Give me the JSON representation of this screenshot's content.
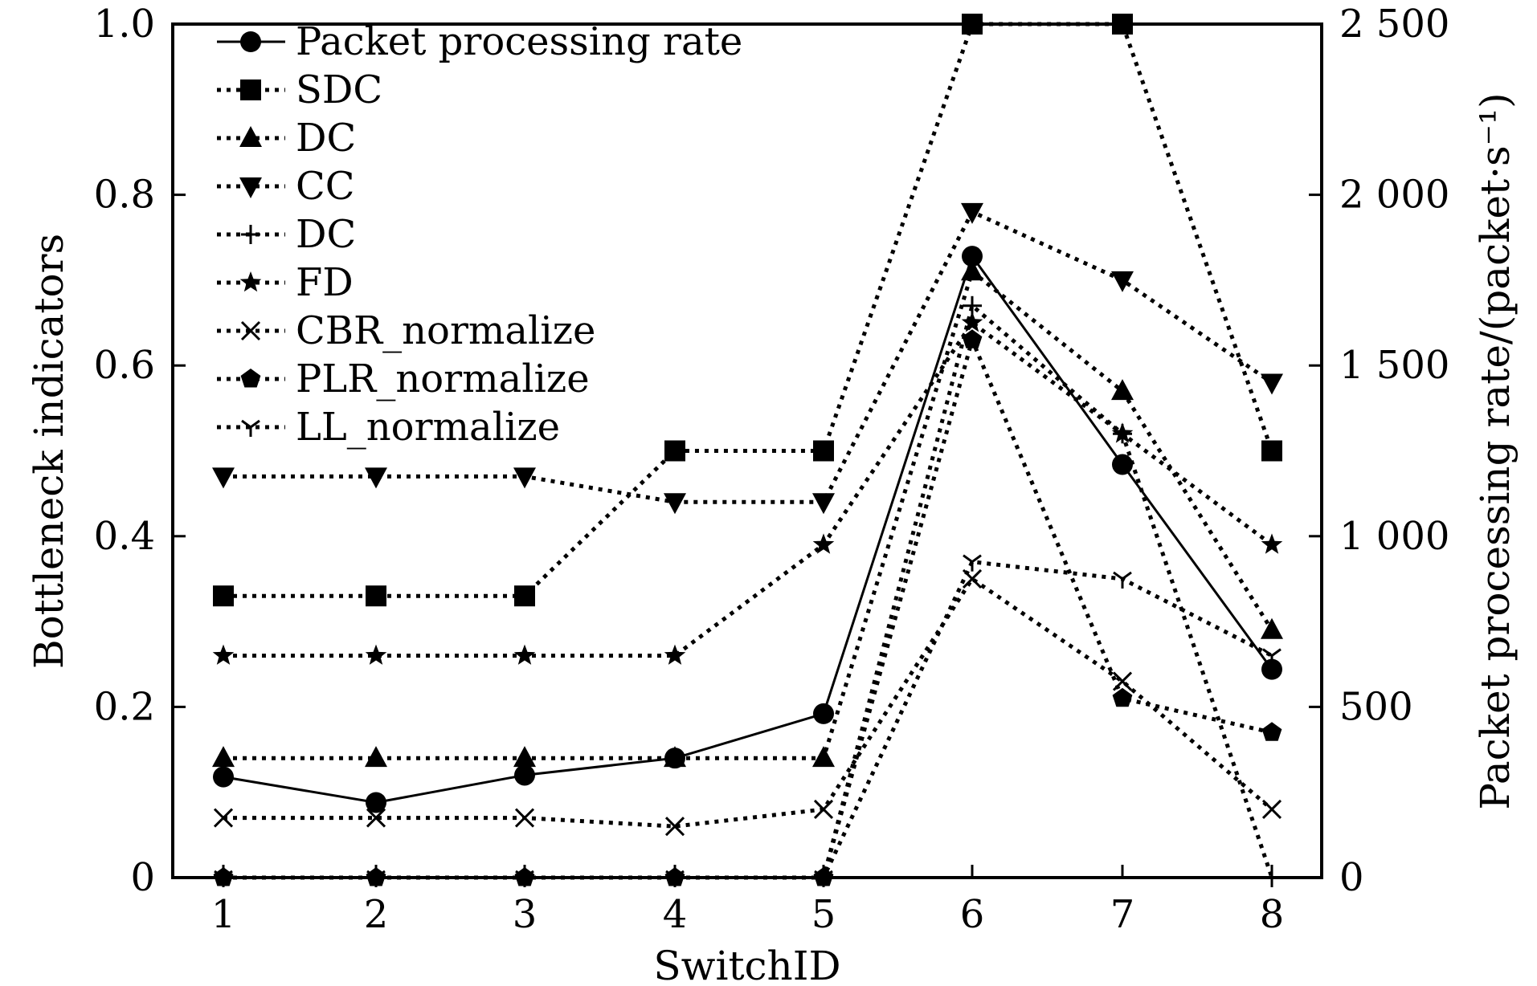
{
  "chart_data": {
    "type": "line",
    "xlabel": "SwitchID",
    "ylabel": "Bottleneck indicators",
    "ylabel_right": "Packet processing rate/(packet·s⁻¹)",
    "categories": [
      "1",
      "2",
      "3",
      "4",
      "5",
      "6",
      "7",
      "8"
    ],
    "ylim": [
      0,
      1.0
    ],
    "ylim_right": [
      0,
      2500
    ],
    "yticks": [
      "0",
      "0.2",
      "0.4",
      "0.6",
      "0.8",
      "1.0"
    ],
    "yticks_right": [
      "0",
      "500",
      "1 000",
      "1 500",
      "2 000",
      "2 500"
    ],
    "grid": false,
    "legend_position": "top-left",
    "series": [
      {
        "name": "Packet processing rate",
        "axis": "right",
        "style": "solid",
        "marker": "circle",
        "values": [
          295,
          220,
          300,
          350,
          480,
          1820,
          1210,
          610
        ]
      },
      {
        "name": "SDC",
        "axis": "left",
        "style": "dotted",
        "marker": "square",
        "values": [
          0.33,
          0.33,
          0.33,
          0.5,
          0.5,
          1.0,
          1.0,
          0.5
        ]
      },
      {
        "name": "DC",
        "axis": "left",
        "style": "dotted",
        "marker": "triangle-up",
        "values": [
          0.14,
          0.14,
          0.14,
          0.14,
          0.14,
          0.71,
          0.57,
          0.29
        ]
      },
      {
        "name": "CC",
        "axis": "left",
        "style": "dotted",
        "marker": "triangle-down",
        "values": [
          0.47,
          0.47,
          0.47,
          0.44,
          0.44,
          0.78,
          0.7,
          0.58
        ]
      },
      {
        "name": "DC",
        "axis": "left",
        "style": "dotted",
        "marker": "plus",
        "values": [
          0,
          0,
          0,
          0,
          0,
          0.67,
          0.52,
          0
        ]
      },
      {
        "name": "FD",
        "axis": "left",
        "style": "dotted",
        "marker": "star",
        "values": [
          0.26,
          0.26,
          0.26,
          0.26,
          0.39,
          0.65,
          0.52,
          0.39
        ]
      },
      {
        "name": "CBR_normalize",
        "axis": "left",
        "style": "dotted",
        "marker": "cross",
        "values": [
          0.07,
          0.07,
          0.07,
          0.06,
          0.08,
          0.35,
          0.23,
          0.08
        ]
      },
      {
        "name": "PLR_normalize",
        "axis": "left",
        "style": "dotted",
        "marker": "pentagon",
        "values": [
          0,
          0,
          0,
          0,
          0,
          0.63,
          0.21,
          0.17
        ]
      },
      {
        "name": "LL_normalize",
        "axis": "left",
        "style": "dotted",
        "marker": "tri-down",
        "values": [
          0,
          0,
          0,
          0,
          0,
          0.37,
          0.35,
          0.26
        ]
      }
    ]
  }
}
